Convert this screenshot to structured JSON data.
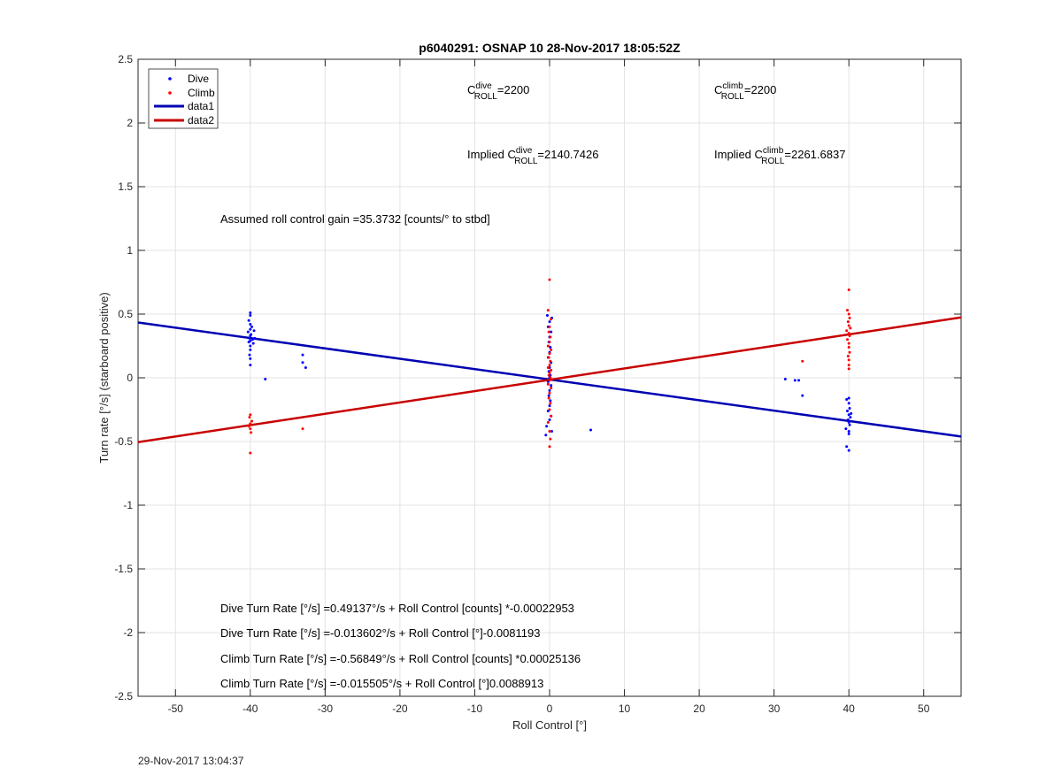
{
  "chart_data": {
    "type": "scatter",
    "title": "p6040291: OSNAP 10 28-Nov-2017 18:05:52Z",
    "xlabel": "Roll Control [°]",
    "ylabel": "Turn rate [°/s] (starboard positive)",
    "xlim": [
      -55,
      55
    ],
    "ylim": [
      -2.5,
      2.5
    ],
    "xticks": [
      -50,
      -40,
      -30,
      -20,
      -10,
      0,
      10,
      20,
      30,
      40,
      50
    ],
    "yticks": [
      -2.5,
      -2,
      -1.5,
      -1,
      -0.5,
      0,
      0.5,
      1,
      1.5,
      2,
      2.5
    ],
    "grid": true,
    "legend_position": "top-left",
    "legend": [
      {
        "name": "Dive",
        "kind": "marker",
        "color": "#0000ff"
      },
      {
        "name": "Climb",
        "kind": "marker",
        "color": "#ff0000"
      },
      {
        "name": "data1",
        "kind": "line",
        "color": "#0000b3"
      },
      {
        "name": "data2",
        "kind": "line",
        "color": "#c80000"
      }
    ],
    "series": [
      {
        "name": "Dive",
        "color": "#0000ff",
        "points": [
          [
            -40,
            0.51
          ],
          [
            -40,
            0.49
          ],
          [
            -40.2,
            0.45
          ],
          [
            -40,
            0.42
          ],
          [
            -39.8,
            0.4
          ],
          [
            -40,
            0.38
          ],
          [
            -40.3,
            0.36
          ],
          [
            -39.9,
            0.34
          ],
          [
            -40,
            0.33
          ],
          [
            -40.1,
            0.31
          ],
          [
            -39.7,
            0.3
          ],
          [
            -40,
            0.29
          ],
          [
            -40.2,
            0.28
          ],
          [
            -39.6,
            0.27
          ],
          [
            -40,
            0.25
          ],
          [
            -40,
            0.22
          ],
          [
            -40.1,
            0.18
          ],
          [
            -40,
            0.15
          ],
          [
            -40,
            0.1
          ],
          [
            -39.5,
            0.37
          ],
          [
            -39.4,
            0.31
          ],
          [
            -33,
            0.18
          ],
          [
            -33,
            0.12
          ],
          [
            -32.6,
            0.08
          ],
          [
            -38,
            -0.01
          ],
          [
            -0.3,
            0.49
          ],
          [
            0.3,
            0.47
          ],
          [
            0,
            0.44
          ],
          [
            -0.2,
            0.4
          ],
          [
            0.2,
            0.36
          ],
          [
            0,
            0.32
          ],
          [
            -0.1,
            0.28
          ],
          [
            0.1,
            0.24
          ],
          [
            0,
            0.2
          ],
          [
            -0.2,
            0.16
          ],
          [
            0.2,
            0.12
          ],
          [
            0,
            0.08
          ],
          [
            -0.1,
            0.05
          ],
          [
            0.1,
            0.02
          ],
          [
            0,
            0.0
          ],
          [
            -0.2,
            -0.03
          ],
          [
            0.2,
            -0.06
          ],
          [
            0,
            -0.1
          ],
          [
            -0.1,
            -0.14
          ],
          [
            0.1,
            -0.18
          ],
          [
            0,
            -0.22
          ],
          [
            -0.2,
            -0.26
          ],
          [
            0.2,
            -0.3
          ],
          [
            0,
            -0.33
          ],
          [
            -0.4,
            -0.38
          ],
          [
            0.3,
            -0.42
          ],
          [
            -0.5,
            -0.45
          ],
          [
            5.5,
            -0.41
          ],
          [
            31.5,
            -0.01
          ],
          [
            32.8,
            -0.02
          ],
          [
            33.3,
            -0.02
          ],
          [
            33.8,
            -0.14
          ],
          [
            40,
            -0.16
          ],
          [
            39.7,
            -0.17
          ],
          [
            40,
            -0.2
          ],
          [
            40.1,
            -0.24
          ],
          [
            39.8,
            -0.26
          ],
          [
            40,
            -0.29
          ],
          [
            40.2,
            -0.31
          ],
          [
            39.9,
            -0.33
          ],
          [
            40,
            -0.35
          ],
          [
            40.1,
            -0.37
          ],
          [
            39.6,
            -0.4
          ],
          [
            40,
            -0.42
          ],
          [
            40,
            -0.44
          ],
          [
            39.7,
            -0.54
          ],
          [
            40,
            -0.57
          ],
          [
            40.3,
            -0.28
          ]
        ]
      },
      {
        "name": "Climb",
        "color": "#ff0000",
        "points": [
          [
            -40,
            -0.29
          ],
          [
            -40.1,
            -0.31
          ],
          [
            -39.8,
            -0.34
          ],
          [
            -40,
            -0.36
          ],
          [
            -40.2,
            -0.38
          ],
          [
            -40,
            -0.4
          ],
          [
            -39.9,
            -0.43
          ],
          [
            -40,
            -0.59
          ],
          [
            -33,
            -0.4
          ],
          [
            0,
            0.77
          ],
          [
            -0.2,
            0.53
          ],
          [
            0.2,
            0.46
          ],
          [
            0,
            0.4
          ],
          [
            -0.1,
            0.36
          ],
          [
            0.1,
            0.32
          ],
          [
            0,
            0.28
          ],
          [
            -0.2,
            0.25
          ],
          [
            0.2,
            0.22
          ],
          [
            0,
            0.19
          ],
          [
            -0.1,
            0.16
          ],
          [
            0.1,
            0.13
          ],
          [
            0,
            0.1
          ],
          [
            -0.2,
            0.08
          ],
          [
            0.2,
            0.06
          ],
          [
            0,
            0.04
          ],
          [
            -0.1,
            0.02
          ],
          [
            0.1,
            0.0
          ],
          [
            0,
            -0.02
          ],
          [
            -0.2,
            -0.05
          ],
          [
            0.2,
            -0.08
          ],
          [
            0,
            -0.12
          ],
          [
            -0.1,
            -0.16
          ],
          [
            0.1,
            -0.2
          ],
          [
            0,
            -0.25
          ],
          [
            0.2,
            -0.3
          ],
          [
            -0.2,
            -0.35
          ],
          [
            0,
            -0.42
          ],
          [
            0.1,
            -0.48
          ],
          [
            0,
            -0.54
          ],
          [
            33.8,
            0.13
          ],
          [
            40,
            0.69
          ],
          [
            39.8,
            0.53
          ],
          [
            40,
            0.5
          ],
          [
            40.1,
            0.47
          ],
          [
            39.9,
            0.44
          ],
          [
            40,
            0.41
          ],
          [
            40.2,
            0.39
          ],
          [
            39.7,
            0.37
          ],
          [
            40,
            0.35
          ],
          [
            40.1,
            0.33
          ],
          [
            39.8,
            0.3
          ],
          [
            40,
            0.27
          ],
          [
            40,
            0.24
          ],
          [
            40.1,
            0.2
          ],
          [
            39.9,
            0.17
          ],
          [
            40,
            0.14
          ],
          [
            40,
            0.1
          ],
          [
            40,
            0.07
          ]
        ]
      },
      {
        "name": "data1",
        "color": "#0000b3",
        "type": "line",
        "points": [
          [
            -55,
            0.434
          ],
          [
            55,
            -0.461
          ]
        ]
      },
      {
        "name": "data2",
        "color": "#c80000",
        "type": "line",
        "points": [
          [
            -55,
            -0.505
          ],
          [
            55,
            0.474
          ]
        ]
      }
    ],
    "annotations": {
      "cdive": {
        "label": "C",
        "sup": "dive",
        "sub": "ROLL",
        "value": "=2200"
      },
      "cclimb": {
        "label": "C",
        "sup": "climb",
        "sub": "ROLL",
        "value": "=2200"
      },
      "implied_dive": {
        "prefix": "Implied C",
        "sup": "dive",
        "sub": "ROLL",
        "value": "=2140.7426"
      },
      "implied_climb": {
        "prefix": "Implied C",
        "sup": "climb",
        "sub": "ROLL",
        "value": "=2261.6837"
      },
      "gain": "Assumed roll control gain =35.3732 [counts/° to stbd]",
      "eq1": "Dive Turn Rate [°/s] =0.49137°/s + Roll Control [counts] *-0.00022953",
      "eq2": "Dive Turn Rate [°/s] =-0.013602°/s + Roll Control [°]-0.0081193",
      "eq3": "Climb Turn Rate [°/s] =-0.56849°/s + Roll Control [counts] *0.00025136",
      "eq4": "Climb Turn Rate [°/s] =-0.015505°/s + Roll Control [°]0.0088913"
    }
  },
  "footer": {
    "timestamp": "29-Nov-2017 13:04:37"
  }
}
